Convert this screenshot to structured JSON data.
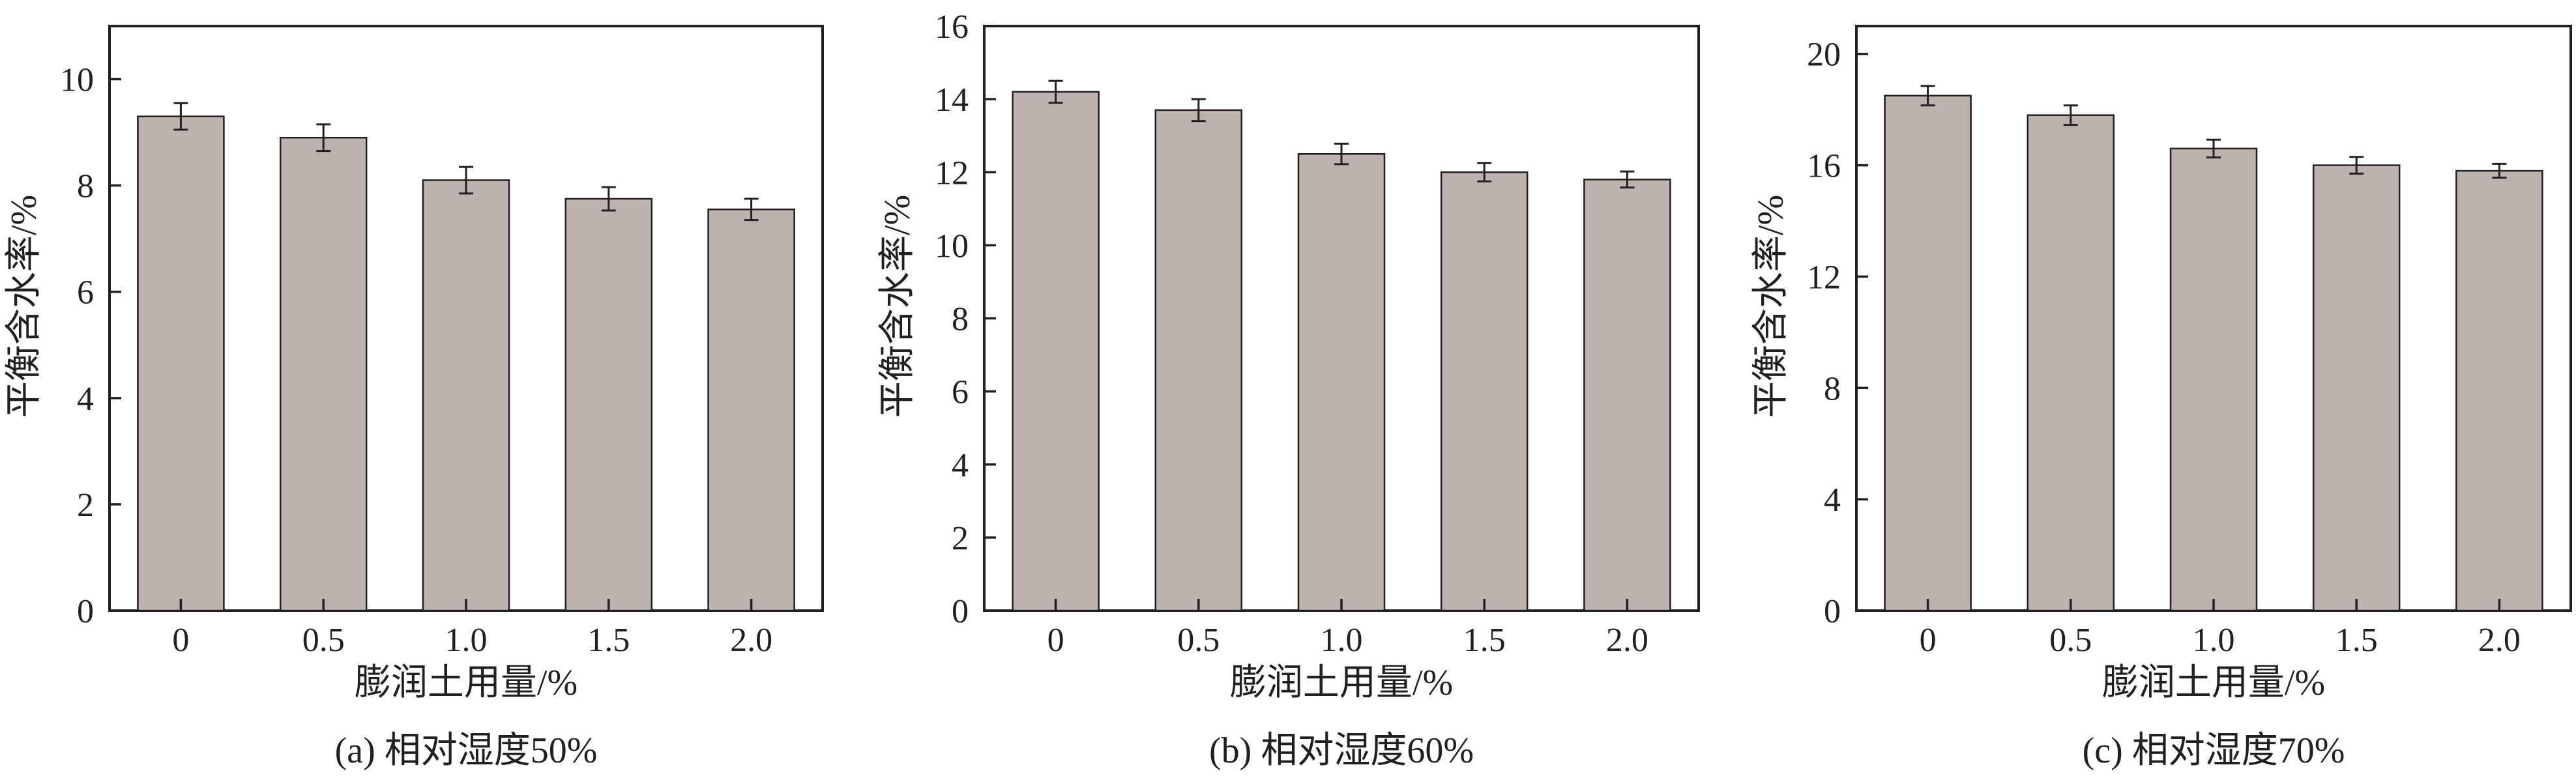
{
  "chart_data": [
    {
      "type": "bar",
      "categories": [
        "0",
        "0.5",
        "1.0",
        "1.5",
        "2.0"
      ],
      "values": [
        9.3,
        8.9,
        8.1,
        7.75,
        7.55
      ],
      "errors": [
        0.25,
        0.25,
        0.25,
        0.22,
        0.2
      ],
      "xlabel": "膨润土用量/%",
      "ylabel": "平衡含水率/%",
      "caption": "(a) 相对湿度50%",
      "ylim": [
        0,
        11
      ],
      "yticks": [
        0,
        2,
        4,
        6,
        8,
        10
      ],
      "ytick_labels": [
        "0",
        "2",
        "4",
        "6",
        "8",
        "10"
      ],
      "grid": false
    },
    {
      "type": "bar",
      "categories": [
        "0",
        "0.5",
        "1.0",
        "1.5",
        "2.0"
      ],
      "values": [
        14.2,
        13.7,
        12.5,
        12.0,
        11.8
      ],
      "errors": [
        0.3,
        0.3,
        0.28,
        0.25,
        0.22
      ],
      "xlabel": "膨润土用量/%",
      "ylabel": "平衡含水率/%",
      "caption": "(b) 相对湿度60%",
      "ylim": [
        0,
        16
      ],
      "yticks": [
        0,
        2,
        4,
        6,
        8,
        10,
        12,
        14,
        16
      ],
      "ytick_labels": [
        "0",
        "2",
        "4",
        "6",
        "8",
        "10",
        "12",
        "14",
        "16"
      ],
      "grid": false
    },
    {
      "type": "bar",
      "categories": [
        "0",
        "0.5",
        "1.0",
        "1.5",
        "2.0"
      ],
      "values": [
        18.5,
        17.8,
        16.6,
        16.0,
        15.8
      ],
      "errors": [
        0.35,
        0.35,
        0.32,
        0.3,
        0.25
      ],
      "xlabel": "膨润土用量/%",
      "ylabel": "平衡含水率/%",
      "caption": "(c) 相对湿度70%",
      "ylim": [
        0,
        21
      ],
      "yticks": [
        0,
        4,
        8,
        12,
        16,
        20
      ],
      "ytick_labels": [
        "0",
        "4",
        "8",
        "12",
        "16",
        "20"
      ],
      "grid": false
    }
  ]
}
